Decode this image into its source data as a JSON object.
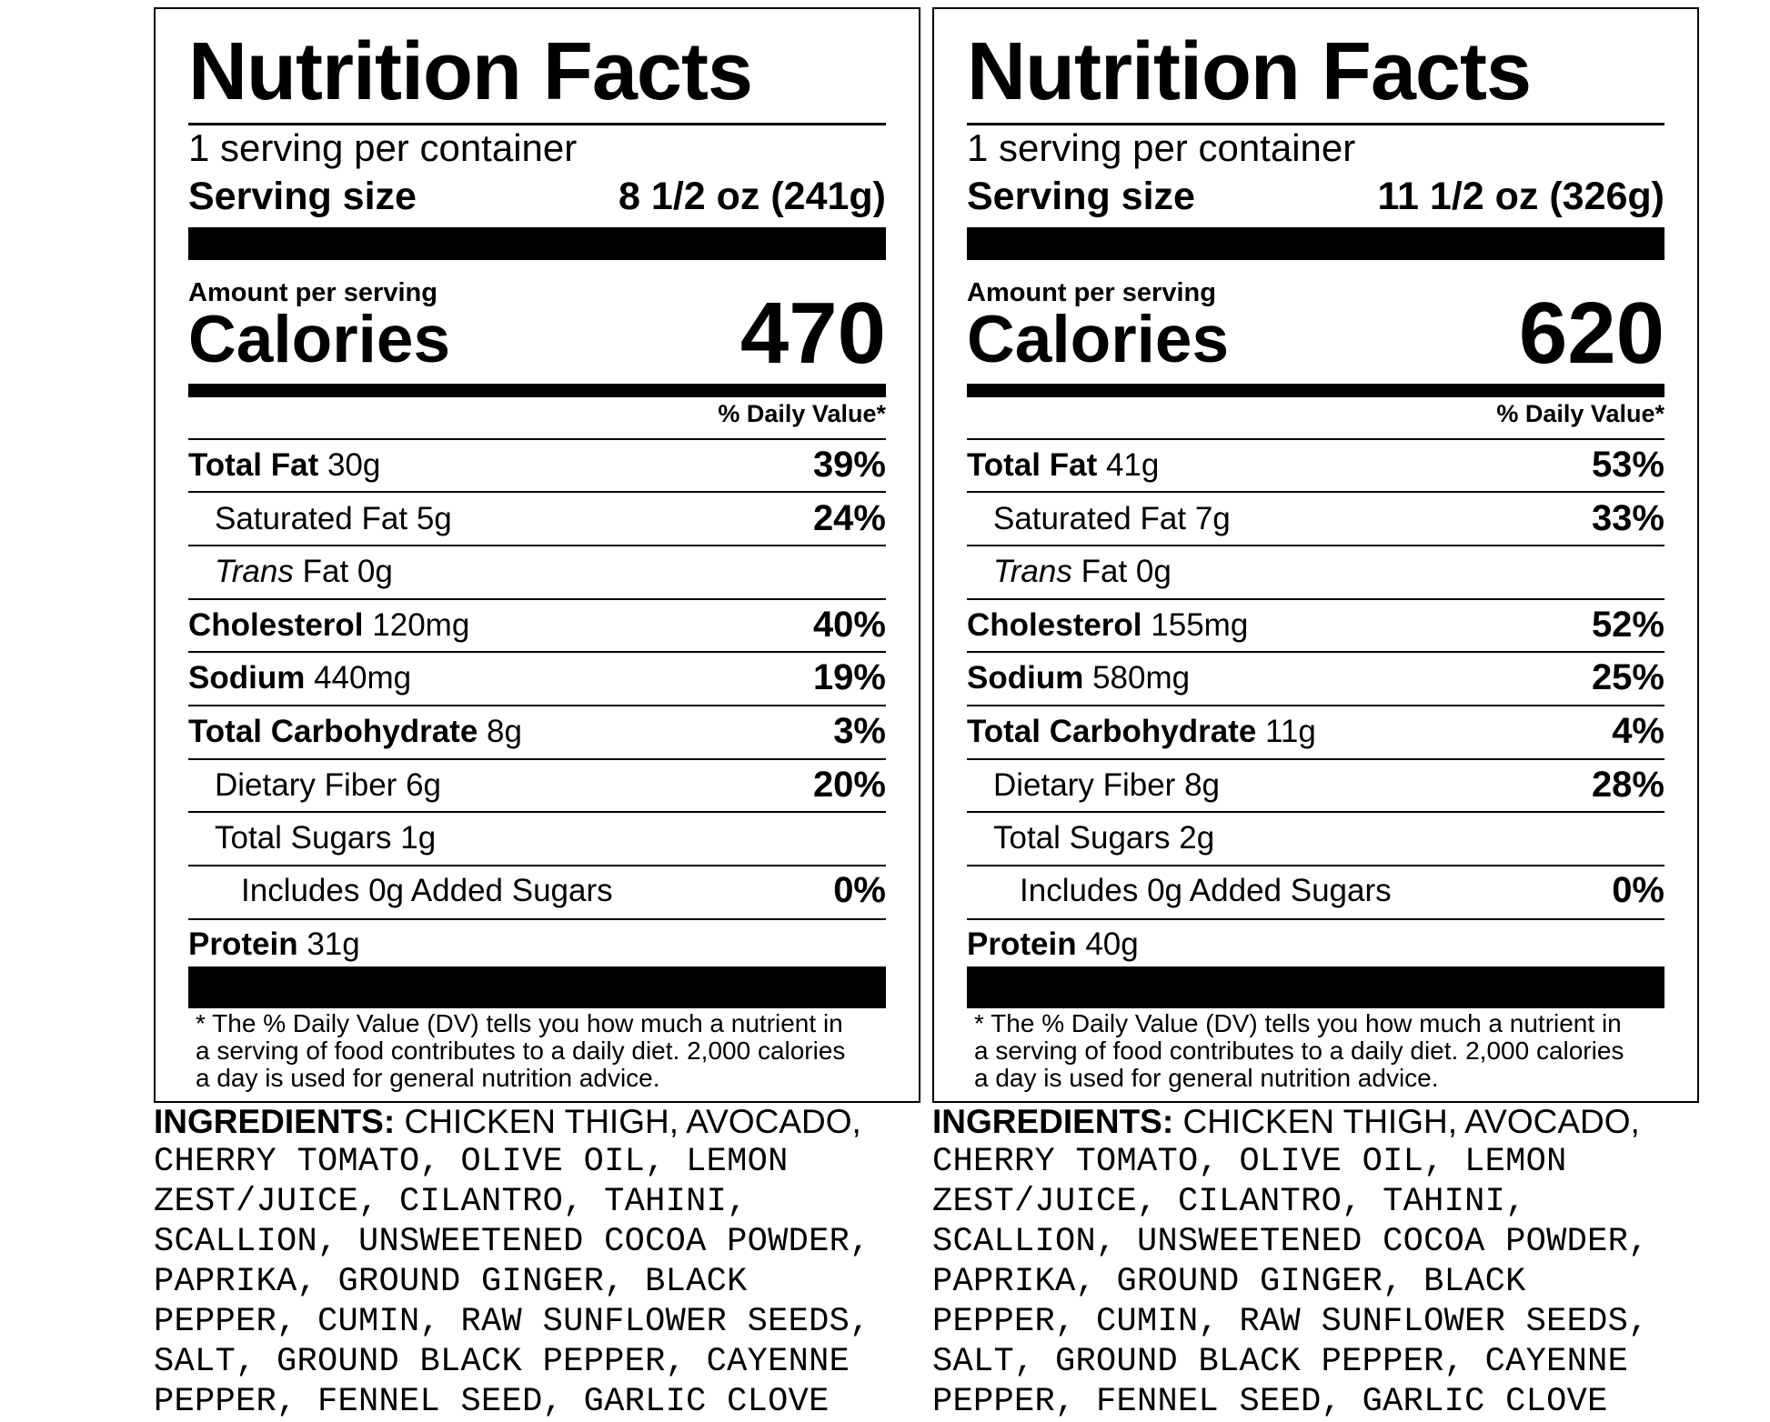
{
  "labels": [
    {
      "title": "Nutrition Facts",
      "servings_per_container": "1 serving per container",
      "serving_size_label": "Serving size",
      "serving_size_value": "8 1/2 oz (241g)",
      "amount_per_serving": "Amount per serving",
      "calories_label": "Calories",
      "calories_value": "470",
      "daily_value_header": "% Daily Value*",
      "nutrients": {
        "total_fat": {
          "label": "Total Fat",
          "amount": "30g",
          "dv": "39%"
        },
        "saturated_fat": {
          "label": "Saturated Fat",
          "amount": "5g",
          "dv": "24%"
        },
        "trans_fat": {
          "label_italic": "Trans",
          "label": "Fat",
          "amount": "0g"
        },
        "cholesterol": {
          "label": "Cholesterol",
          "amount": "120mg",
          "dv": "40%"
        },
        "sodium": {
          "label": "Sodium",
          "amount": "440mg",
          "dv": "19%"
        },
        "total_carbohydrate": {
          "label": "Total Carbohydrate",
          "amount": "8g",
          "dv": "3%"
        },
        "dietary_fiber": {
          "label": "Dietary Fiber",
          "amount": "6g",
          "dv": "20%"
        },
        "total_sugars": {
          "label": "Total Sugars",
          "amount": "1g"
        },
        "added_sugars": {
          "text": "Includes 0g Added Sugars",
          "dv": "0%"
        },
        "protein": {
          "label": "Protein",
          "amount": "31g"
        }
      },
      "footnote": [
        "* The % Daily Value (DV) tells you how much a nutrient in",
        "a serving of food contributes to a daily diet. 2,000 calories",
        "a day is used for general nutrition advice."
      ],
      "ingredients_heading": "INGREDIENTS:",
      "ingredients_lines": [
        " CHICKEN THIGH, AVOCADO,",
        "CHERRY TOMATO, OLIVE OIL, LEMON",
        "ZEST/JUICE, CILANTRO, TAHINI,",
        "SCALLION, UNSWEETENED COCOA POWDER,",
        "PAPRIKA, GROUND GINGER, BLACK",
        "PEPPER, CUMIN, RAW SUNFLOWER SEEDS,",
        "SALT, GROUND BLACK PEPPER, CAYENNE",
        "PEPPER, FENNEL SEED, GARLIC CLOVE"
      ]
    },
    {
      "title": "Nutrition Facts",
      "servings_per_container": "1 serving per container",
      "serving_size_label": "Serving size",
      "serving_size_value": "11 1/2 oz (326g)",
      "amount_per_serving": "Amount per serving",
      "calories_label": "Calories",
      "calories_value": "620",
      "daily_value_header": "% Daily Value*",
      "nutrients": {
        "total_fat": {
          "label": "Total Fat",
          "amount": "41g",
          "dv": "53%"
        },
        "saturated_fat": {
          "label": "Saturated Fat",
          "amount": "7g",
          "dv": "33%"
        },
        "trans_fat": {
          "label_italic": "Trans",
          "label": "Fat",
          "amount": "0g"
        },
        "cholesterol": {
          "label": "Cholesterol",
          "amount": "155mg",
          "dv": "52%"
        },
        "sodium": {
          "label": "Sodium",
          "amount": "580mg",
          "dv": "25%"
        },
        "total_carbohydrate": {
          "label": "Total Carbohydrate",
          "amount": "11g",
          "dv": "4%"
        },
        "dietary_fiber": {
          "label": "Dietary Fiber",
          "amount": "8g",
          "dv": "28%"
        },
        "total_sugars": {
          "label": "Total Sugars",
          "amount": "2g"
        },
        "added_sugars": {
          "text": "Includes 0g Added Sugars",
          "dv": "0%"
        },
        "protein": {
          "label": "Protein",
          "amount": "40g"
        }
      },
      "footnote": [
        "* The % Daily Value (DV) tells you how much a nutrient in",
        "a serving of food contributes to a daily diet. 2,000 calories",
        "a day is used for general nutrition advice."
      ],
      "ingredients_heading": "INGREDIENTS:",
      "ingredients_lines": [
        " CHICKEN THIGH, AVOCADO,",
        "CHERRY TOMATO, OLIVE OIL, LEMON",
        "ZEST/JUICE, CILANTRO, TAHINI,",
        "SCALLION, UNSWEETENED COCOA POWDER,",
        "PAPRIKA, GROUND GINGER, BLACK",
        "PEPPER, CUMIN, RAW SUNFLOWER SEEDS,",
        "SALT, GROUND BLACK PEPPER, CAYENNE",
        "PEPPER, FENNEL SEED, GARLIC CLOVE"
      ]
    }
  ]
}
